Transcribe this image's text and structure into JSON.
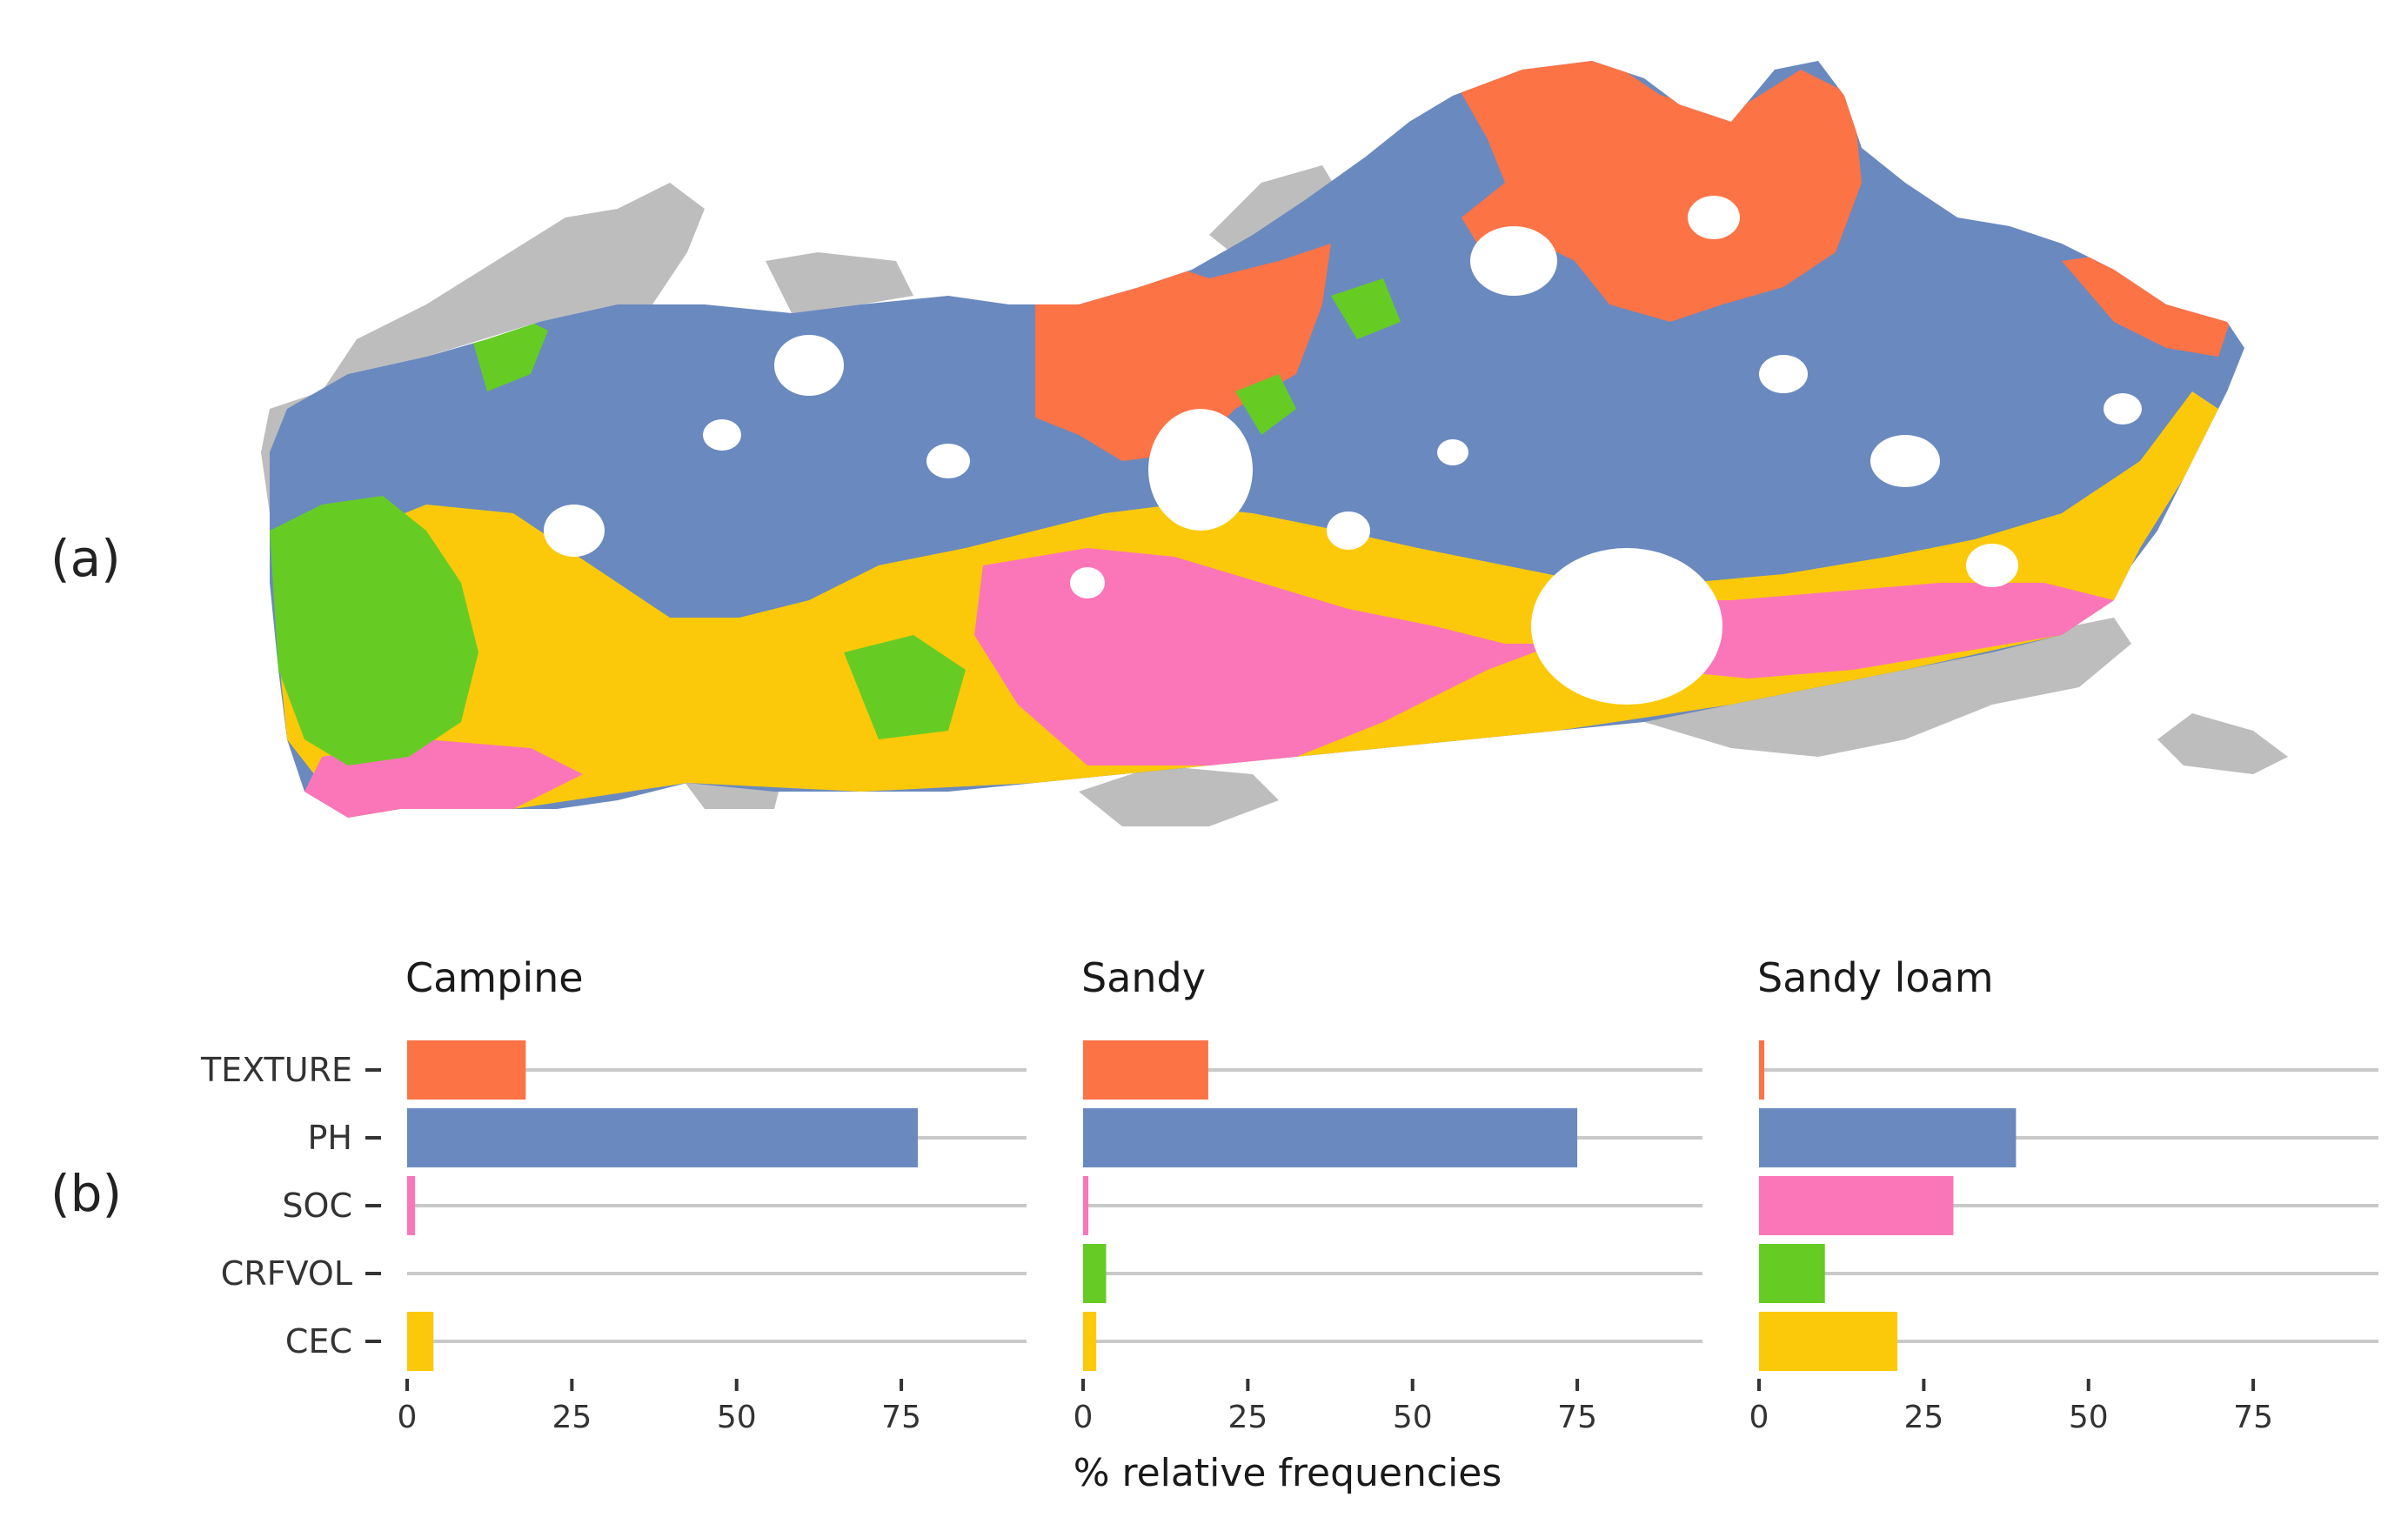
{
  "panels": {
    "a": "(a)",
    "b": "(b)"
  },
  "colors": {
    "TEXTURE": "#fc7346",
    "PH": "#6a89bf",
    "SOC": "#fb76b8",
    "CRFVOL": "#66cc24",
    "CEC": "#fcc90a",
    "outside": "#bdbdbd",
    "grid": "#c9c9c9"
  },
  "chart_data": {
    "type": "bar",
    "orientation": "horizontal",
    "facets": [
      "Campine",
      "Sandy",
      "Sandy loam"
    ],
    "categories": [
      "TEXTURE",
      "PH",
      "SOC",
      "CRFVOL",
      "CEC"
    ],
    "series": [
      {
        "facet": "Campine",
        "values": [
          18,
          77.5,
          1.2,
          0,
          4
        ]
      },
      {
        "facet": "Sandy",
        "values": [
          19,
          75,
          0.8,
          3.5,
          2
        ]
      },
      {
        "facet": "Sandy loam",
        "values": [
          0.8,
          39,
          29.5,
          10,
          21
        ]
      }
    ],
    "xlabel": "% relative frequencies",
    "xticks": [
      0,
      25,
      50,
      75
    ],
    "xlim": [
      0,
      94
    ],
    "grid": "horizontal"
  }
}
